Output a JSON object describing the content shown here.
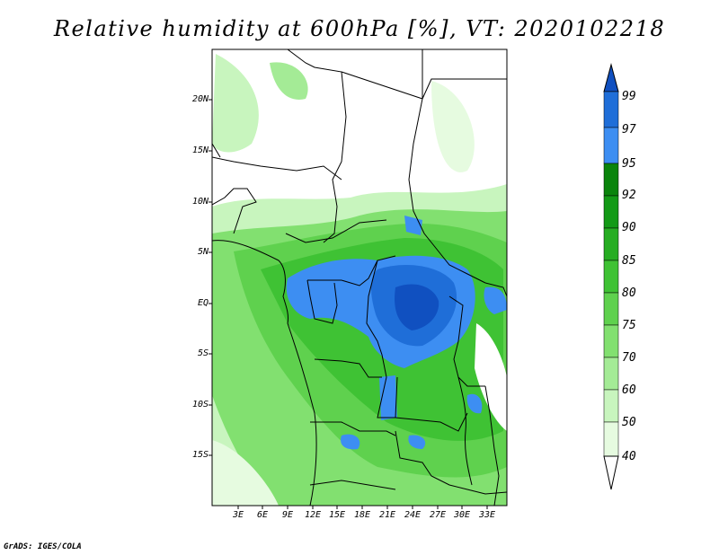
{
  "title": "Relative humidity at 600hPa [%], VT: 2020102218",
  "credit": "GrADS: IGES/COLA",
  "lat_ticks": [
    "20N",
    "15N",
    "10N",
    "5N",
    "EQ",
    "5S",
    "10S",
    "15S"
  ],
  "lon_ticks": [
    "3E",
    "6E",
    "9E",
    "12E",
    "15E",
    "18E",
    "21E",
    "24E",
    "27E",
    "30E",
    "33E"
  ],
  "colorbar": {
    "levels": [
      "40",
      "50",
      "60",
      "70",
      "75",
      "80",
      "85",
      "90",
      "92",
      "95",
      "97",
      "99"
    ],
    "colors": [
      "#ffffff",
      "#e6fbe0",
      "#c8f5be",
      "#a4eb96",
      "#82e070",
      "#5fd14e",
      "#3fc234",
      "#26ad22",
      "#139a16",
      "#0a840c",
      "#3d8ef2",
      "#1f6ed8",
      "#1050c0"
    ]
  },
  "colors": {
    "dry": "#ffffff",
    "moist": "#5fd14e",
    "saturated": "#1f6ed8",
    "border": "#000000"
  }
}
